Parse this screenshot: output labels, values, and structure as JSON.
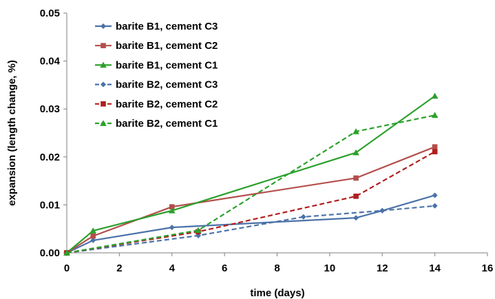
{
  "chart_data": {
    "type": "line",
    "xlabel": "time (days)",
    "ylabel": "expansion (length change, %)",
    "xlim": [
      0,
      16
    ],
    "ylim": [
      0,
      0.05
    ],
    "xticks": [
      0,
      2,
      4,
      6,
      8,
      10,
      12,
      14,
      16
    ],
    "xtick_labels": [
      "0",
      "2",
      "4",
      "6",
      "8",
      "10",
      "12",
      "14",
      "16"
    ],
    "yticks": [
      0,
      0.01,
      0.02,
      0.03,
      0.04,
      0.05
    ],
    "ytick_labels": [
      "0.00",
      "0.01",
      "0.02",
      "0.03",
      "0.04",
      "0.05"
    ],
    "grid": false,
    "legend_position": "top-left",
    "series": [
      {
        "name": "barite B1, cement C3",
        "color": "#4a72a8",
        "marker": "diamond",
        "dashed": false,
        "x": [
          0,
          1,
          4,
          11,
          12,
          14
        ],
        "y": [
          0,
          0.0026,
          0.0053,
          0.0073,
          0.0088,
          0.012
        ]
      },
      {
        "name": "barite B1, cement C2",
        "color": "#b34e4b",
        "marker": "square",
        "dashed": false,
        "x": [
          0,
          1,
          4,
          11,
          14
        ],
        "y": [
          0,
          0.0035,
          0.0096,
          0.0156,
          0.0221
        ]
      },
      {
        "name": "barite B1, cement C1",
        "color": "#2ca02c",
        "marker": "triangle",
        "dashed": false,
        "x": [
          0,
          1,
          4,
          11,
          14
        ],
        "y": [
          0,
          0.0046,
          0.0088,
          0.0209,
          0.0327
        ]
      },
      {
        "name": "barite B2, cement C3",
        "color": "#4a72a8",
        "marker": "diamond",
        "dashed": true,
        "x": [
          0,
          5,
          9,
          12,
          14
        ],
        "y": [
          0,
          0.0036,
          0.0075,
          0.0088,
          0.0098
        ]
      },
      {
        "name": "barite B2, cement C2",
        "color": "#b11e1e",
        "marker": "square",
        "dashed": true,
        "x": [
          0,
          5,
          11,
          14
        ],
        "y": [
          0,
          0.0044,
          0.0118,
          0.0211
        ]
      },
      {
        "name": "barite B2, cement C1",
        "color": "#2ca02c",
        "marker": "triangle",
        "dashed": true,
        "x": [
          0,
          5,
          11,
          14
        ],
        "y": [
          0,
          0.0047,
          0.0253,
          0.0287
        ]
      }
    ]
  }
}
